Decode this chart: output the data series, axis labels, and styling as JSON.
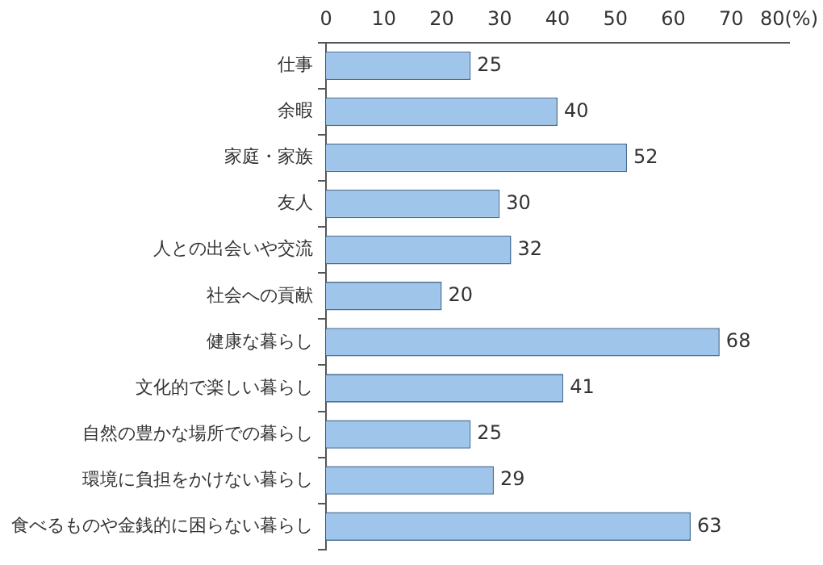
{
  "chart_data": {
    "type": "bar",
    "orientation": "horizontal",
    "categories": [
      "仕事",
      "余暇",
      "家庭・家族",
      "友人",
      "人との出会いや交流",
      "社会への貢献",
      "健康な暮らし",
      "文化的で楽しい暮らし",
      "自然の豊かな場所での暮らし",
      "環境に負担をかけない暮らし",
      "食べるものや金銭的に困らない暮らし"
    ],
    "values": [
      25,
      40,
      52,
      30,
      32,
      20,
      68,
      41,
      25,
      29,
      63
    ],
    "color": "#9fc6ea",
    "xlim": [
      0,
      80
    ],
    "xticks": [
      0,
      10,
      20,
      30,
      40,
      50,
      60,
      70,
      {
        "value": 80,
        "label": "80(%)"
      }
    ],
    "data_labels": true,
    "grid": false,
    "legend": false
  }
}
